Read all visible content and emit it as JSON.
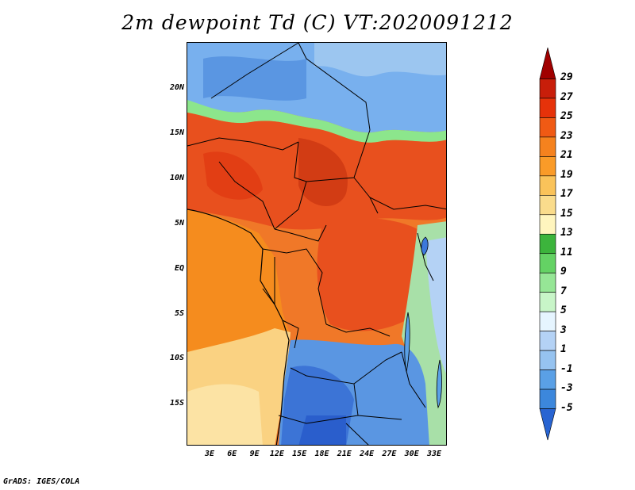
{
  "title": "2m dewpoint Td (C) VT:2020091212",
  "footer": "GrADS: IGES/COLA",
  "lat_labels": [
    "20N",
    "15N",
    "10N",
    "5N",
    "EQ",
    "5S",
    "10S",
    "15S"
  ],
  "lon_labels": [
    "3E",
    "6E",
    "9E",
    "12E",
    "15E",
    "18E",
    "21E",
    "24E",
    "27E",
    "30E",
    "33E"
  ],
  "colorbar": {
    "labels": [
      "29",
      "27",
      "25",
      "23",
      "21",
      "19",
      "17",
      "15",
      "13",
      "11",
      "9",
      "7",
      "5",
      "3",
      "1",
      "-1",
      "-3",
      "-5"
    ],
    "colors": [
      "#a00000",
      "#c81e0a",
      "#e6320a",
      "#f05a14",
      "#f5821e",
      "#fa9b28",
      "#fac35a",
      "#fadc8c",
      "#fff5be",
      "#3cb43c",
      "#64d264",
      "#96e696",
      "#c8f5c8",
      "#e6f5ff",
      "#b4d2f5",
      "#96c3f0",
      "#5aa0e6",
      "#3c87dc",
      "#2864d2"
    ]
  },
  "regions": {
    "sahara_blue": "#6eaaeb",
    "sahel_green": "#8ce68c",
    "north_red": "#e6461e",
    "central_orange": "#f06e1e",
    "coast_orange": "#f5961e",
    "south_yellow": "#fad278",
    "south_blue": "#3c78dc"
  }
}
